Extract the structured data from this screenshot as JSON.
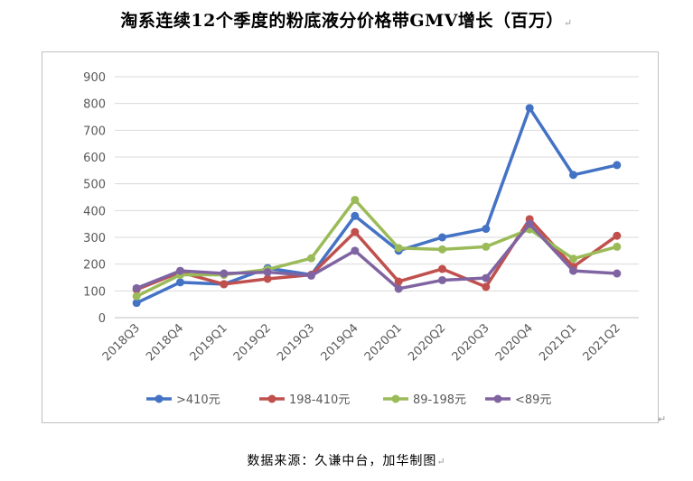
{
  "title": "淘系连续12个季度的粉底液分价格带GMV增长（百万）",
  "source": "数据来源：久谦中台，加华制图",
  "colors": {
    "series_0": "#4472c4",
    "series_1": "#c0504d",
    "series_2": "#9bbb59",
    "series_3": "#8064a2",
    "grid": "#d9d9d9",
    "axis": "#bfbfbf"
  },
  "chart_data": {
    "type": "line",
    "title": "淘系连续12个季度的粉底液分价格带GMV增长（百万）",
    "categories": [
      "2018Q3",
      "2018Q4",
      "2019Q1",
      "2019Q2",
      "2019Q3",
      "2019Q4",
      "2020Q1",
      "2020Q2",
      "2020Q3",
      "2020Q4",
      "2021Q1",
      "2021Q2"
    ],
    "y_ticks": [
      "0",
      "100",
      "200",
      "300",
      "400",
      "500",
      "600",
      "700",
      "800",
      "900"
    ],
    "ylim": [
      0,
      900
    ],
    "grid": true,
    "legend_position": "bottom",
    "series": [
      {
        "name": ">410元",
        "values": [
          55,
          132,
          125,
          185,
          160,
          380,
          250,
          300,
          332,
          783,
          533,
          570
        ]
      },
      {
        "name": "198-410元",
        "values": [
          105,
          170,
          125,
          145,
          160,
          320,
          135,
          182,
          115,
          368,
          190,
          306
        ]
      },
      {
        "name": "89-198元",
        "values": [
          80,
          160,
          160,
          180,
          222,
          440,
          260,
          255,
          265,
          330,
          220,
          265
        ]
      },
      {
        "name": "<89元",
        "values": [
          110,
          175,
          165,
          170,
          157,
          250,
          108,
          140,
          148,
          350,
          175,
          165
        ]
      }
    ]
  }
}
